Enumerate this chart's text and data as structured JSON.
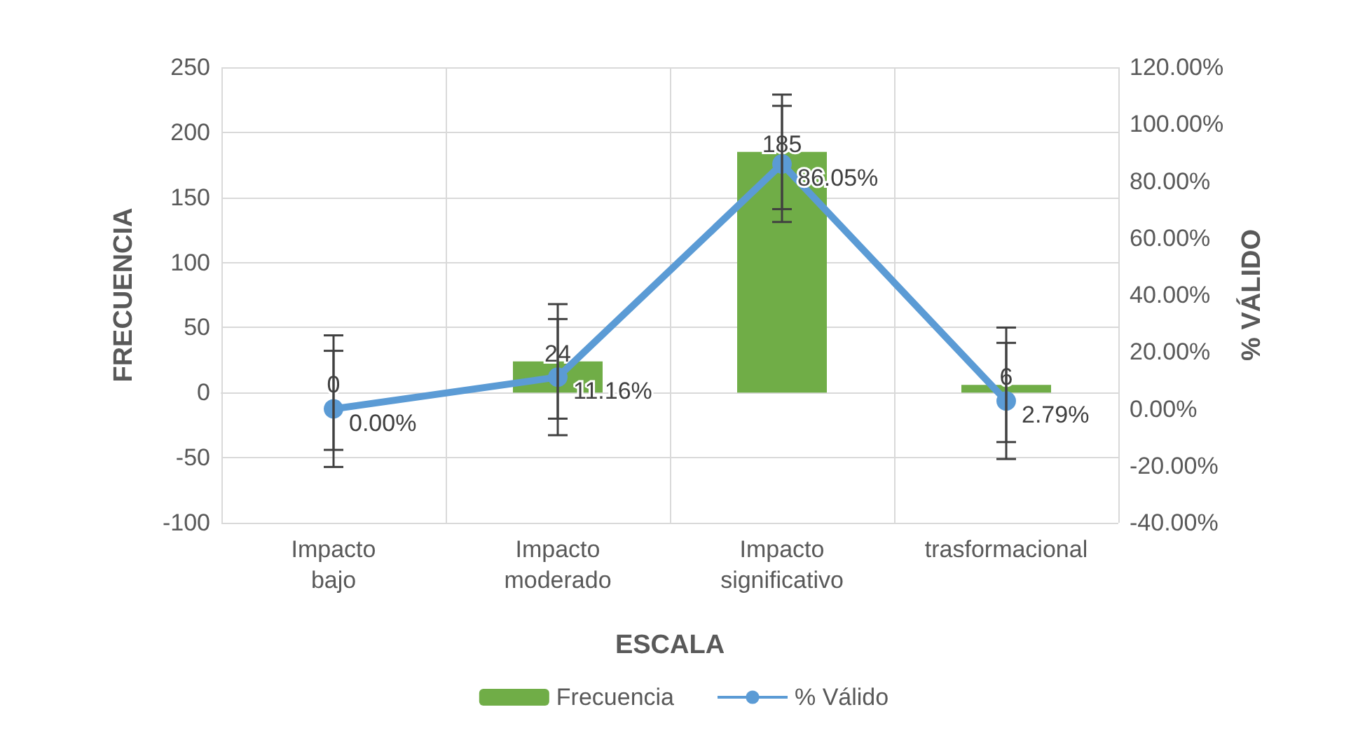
{
  "chart_data": {
    "type": "bar",
    "xlabel": "ESCALA",
    "ylabel": "FRECUENCIA",
    "y2label": "% VÁLIDO",
    "categories": [
      "Impacto bajo",
      "Impacto moderado",
      "Impacto significativo",
      "trasformacional"
    ],
    "series": [
      {
        "name": "Frecuencia",
        "color": "#70ad47",
        "values": [
          0,
          24,
          185,
          6
        ],
        "errors": [
          44,
          44,
          44,
          44
        ],
        "value_labels": [
          "0",
          "24",
          "185",
          "6"
        ]
      },
      {
        "name": "% Válido",
        "type": "line",
        "axis": "y2",
        "color": "#5b9bd5",
        "values": [
          0,
          11.16,
          86.05,
          2.79
        ],
        "errors": [
          20.4,
          20.4,
          20.4,
          20.4
        ],
        "value_labels": [
          "0.00%",
          "11.16%",
          "86.05%",
          "2.79%"
        ]
      }
    ],
    "ylim": [
      -100,
      250
    ],
    "yticks": [
      -100,
      -50,
      0,
      50,
      100,
      150,
      200,
      250
    ],
    "y2lim": [
      -40,
      120
    ],
    "y2ticks": [
      {
        "value": -40,
        "label": "-40.00%"
      },
      {
        "value": -20,
        "label": "-20.00%"
      },
      {
        "value": 0,
        "label": "0.00%"
      },
      {
        "value": 20,
        "label": "20.00%"
      },
      {
        "value": 40,
        "label": "40.00%"
      },
      {
        "value": 60,
        "label": "60.00%"
      },
      {
        "value": 80,
        "label": "80.00%"
      },
      {
        "value": 100,
        "label": "100.00%"
      },
      {
        "value": 120,
        "label": "120.00%"
      }
    ],
    "grid": true,
    "legend": "bottom",
    "marker": "circle"
  }
}
